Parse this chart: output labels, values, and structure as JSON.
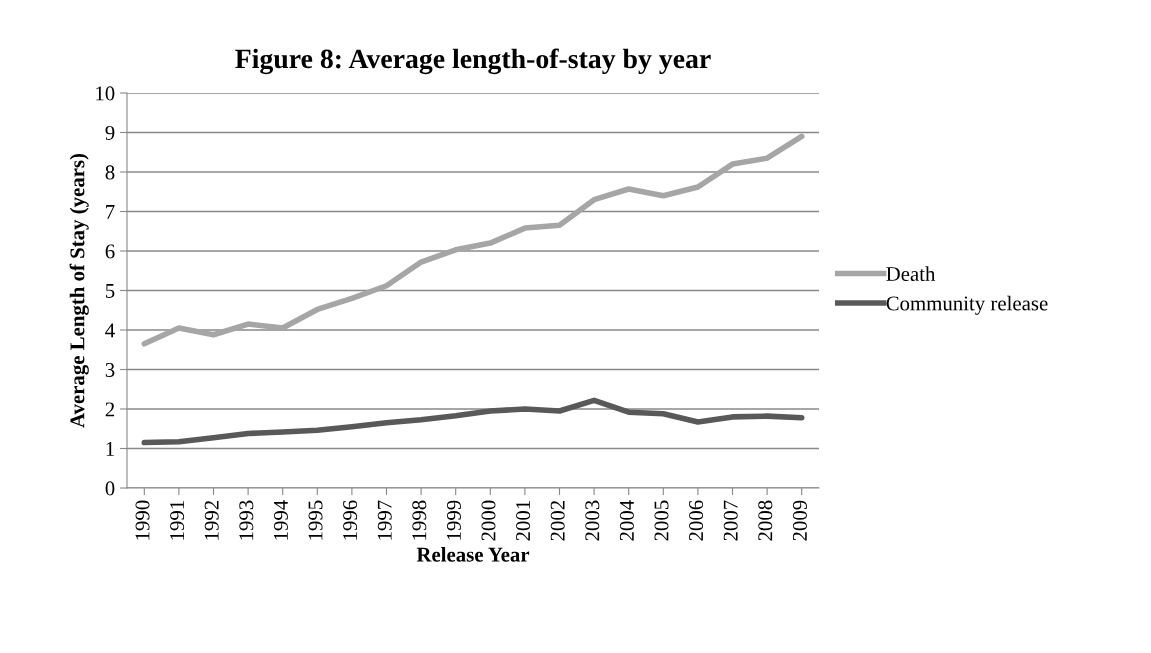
{
  "chart_data": {
    "type": "line",
    "title": "Figure 8: Average length-of-stay by year",
    "xlabel": "Release Year",
    "ylabel": "Average Length of Stay (years)",
    "categories": [
      "1990",
      "1991",
      "1992",
      "1993",
      "1994",
      "1995",
      "1996",
      "1997",
      "1998",
      "1999",
      "2000",
      "2001",
      "2002",
      "2003",
      "2004",
      "2005",
      "2006",
      "2007",
      "2008",
      "2009"
    ],
    "series": [
      {
        "name": "Death",
        "color": "#a6a6a6",
        "values": [
          3.65,
          4.05,
          3.88,
          4.15,
          4.05,
          4.52,
          4.8,
          5.12,
          5.72,
          6.03,
          6.2,
          6.58,
          6.65,
          7.3,
          7.57,
          7.4,
          7.62,
          8.2,
          8.35,
          8.9
        ]
      },
      {
        "name": "Community release",
        "color": "#595959",
        "values": [
          1.15,
          1.17,
          1.27,
          1.38,
          1.42,
          1.46,
          1.55,
          1.65,
          1.73,
          1.83,
          1.95,
          2.0,
          1.95,
          2.22,
          1.92,
          1.88,
          1.67,
          1.8,
          1.82,
          1.78
        ]
      }
    ],
    "ylim": [
      0,
      10
    ],
    "yticks": [
      0,
      1,
      2,
      3,
      4,
      5,
      6,
      7,
      8,
      9,
      10
    ],
    "grid": "y",
    "legend": "right",
    "marker": "none",
    "line_style": "solid"
  }
}
